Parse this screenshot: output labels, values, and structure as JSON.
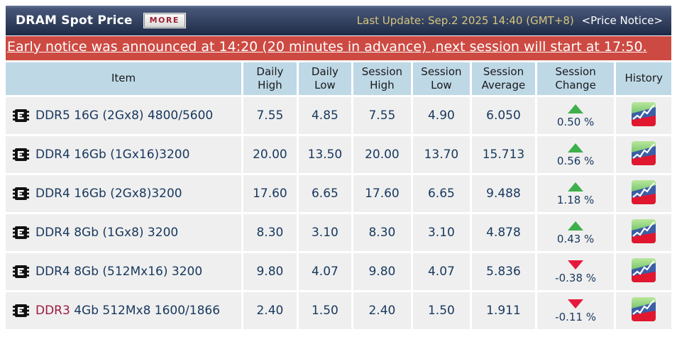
{
  "header": {
    "title": "DRAM Spot Price",
    "more_label": "MORE",
    "last_update": "Last Update: Sep.2 2025 14:40 (GMT+8)",
    "price_notice": "<Price Notice>"
  },
  "notice": {
    "text": "Early notice was announced at 14:20 (20 minutes in advance) ,next session will start at 17:50."
  },
  "table": {
    "columns": [
      "Item",
      "Daily High",
      "Daily Low",
      "Session High",
      "Session Low",
      "Session Average",
      "Session Change",
      "History"
    ],
    "rows": [
      {
        "item_prefix": "DDR5",
        "item_rest": " 16G (2Gx8) 4800/5600",
        "prefix_highlight": false,
        "daily_high": "7.55",
        "daily_low": "4.85",
        "session_high": "7.55",
        "session_low": "4.90",
        "session_average": "6.050",
        "change": "0.50 %",
        "direction": "up"
      },
      {
        "item_prefix": "DDR4",
        "item_rest": " 16Gb (1Gx16)3200",
        "prefix_highlight": false,
        "daily_high": "20.00",
        "daily_low": "13.50",
        "session_high": "20.00",
        "session_low": "13.70",
        "session_average": "15.713",
        "change": "0.56 %",
        "direction": "up"
      },
      {
        "item_prefix": "DDR4",
        "item_rest": " 16Gb (2Gx8)3200",
        "prefix_highlight": false,
        "daily_high": "17.60",
        "daily_low": "6.65",
        "session_high": "17.60",
        "session_low": "6.65",
        "session_average": "9.488",
        "change": "1.18 %",
        "direction": "up"
      },
      {
        "item_prefix": "DDR4",
        "item_rest": " 8Gb (1Gx8) 3200",
        "prefix_highlight": false,
        "daily_high": "8.30",
        "daily_low": "3.10",
        "session_high": "8.30",
        "session_low": "3.10",
        "session_average": "4.878",
        "change": "0.43 %",
        "direction": "up"
      },
      {
        "item_prefix": "DDR4",
        "item_rest": " 8Gb (512Mx16) 3200",
        "prefix_highlight": false,
        "daily_high": "9.80",
        "daily_low": "4.07",
        "session_high": "9.80",
        "session_low": "4.07",
        "session_average": "5.836",
        "change": "-0.38 %",
        "direction": "down"
      },
      {
        "item_prefix": "DDR3",
        "item_rest": " 4Gb 512Mx8 1600/1866",
        "prefix_highlight": true,
        "daily_high": "2.40",
        "daily_low": "1.50",
        "session_high": "2.40",
        "session_low": "1.50",
        "session_average": "1.911",
        "change": "-0.11 %",
        "direction": "down"
      }
    ]
  },
  "icons": {
    "chip": "memory-chip-icon",
    "history": "history-chart-icon",
    "up_arrow": "up-arrow-icon",
    "down_arrow": "down-arrow-icon"
  },
  "colors": {
    "notice_bg": "#cd4a42",
    "table_header_bg": "#bed8e6",
    "row_bg": "#efefef",
    "value_text": "#17375e",
    "ddr3_prefix": "#9c1b40",
    "up_green": "#3db04b",
    "down_red": "#e6193c",
    "last_update_text": "#d6c57c"
  }
}
